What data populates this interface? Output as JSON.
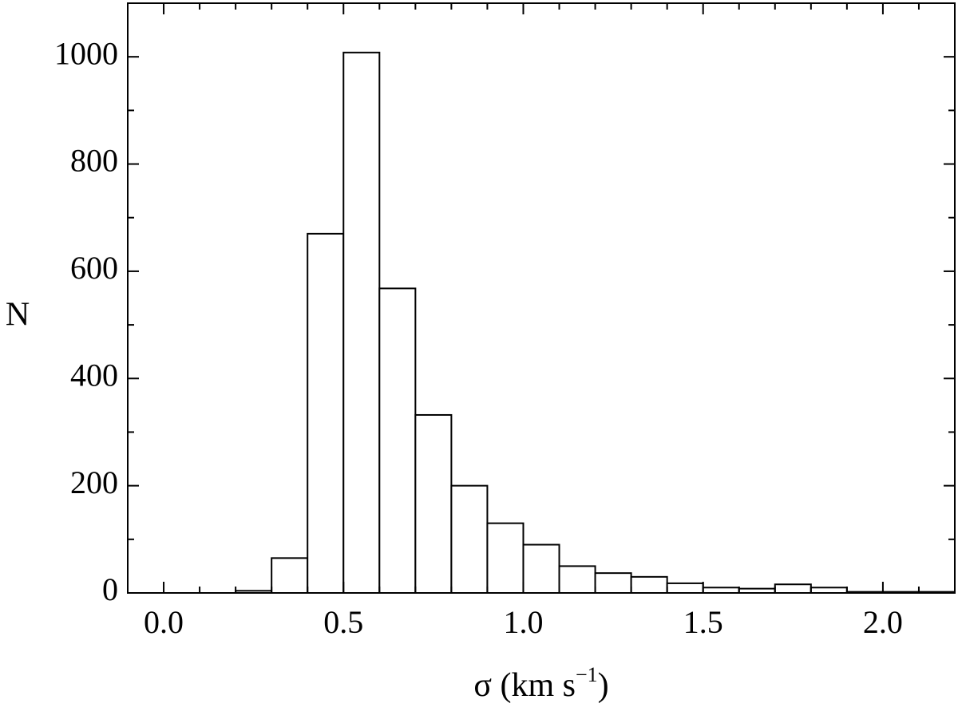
{
  "chart_data": {
    "type": "bar",
    "title": "",
    "xlabel": {
      "main": "σ (km s",
      "sup": "−1",
      "close": ")"
    },
    "ylabel": "N",
    "xlim": [
      -0.1,
      2.2
    ],
    "ylim": [
      0,
      1100
    ],
    "bin_width": 0.1,
    "xticks": [
      0.0,
      0.5,
      1.0,
      1.5,
      2.0
    ],
    "xtick_labels": [
      "0.0",
      "0.5",
      "1.0",
      "1.5",
      "2.0"
    ],
    "yticks": [
      0,
      200,
      400,
      600,
      800,
      1000
    ],
    "ytick_labels": [
      "0",
      "200",
      "400",
      "600",
      "800",
      "1000"
    ],
    "x_minor_step": 0.1,
    "y_minor_step": 100,
    "grid": false,
    "legend": "none",
    "bins": [
      {
        "start": 0.2,
        "value": 4
      },
      {
        "start": 0.3,
        "value": 65
      },
      {
        "start": 0.4,
        "value": 670
      },
      {
        "start": 0.5,
        "value": 1008
      },
      {
        "start": 0.6,
        "value": 568
      },
      {
        "start": 0.7,
        "value": 332
      },
      {
        "start": 0.8,
        "value": 200
      },
      {
        "start": 0.9,
        "value": 130
      },
      {
        "start": 1.0,
        "value": 90
      },
      {
        "start": 1.1,
        "value": 50
      },
      {
        "start": 1.2,
        "value": 37
      },
      {
        "start": 1.3,
        "value": 30
      },
      {
        "start": 1.4,
        "value": 18
      },
      {
        "start": 1.5,
        "value": 10
      },
      {
        "start": 1.6,
        "value": 8
      },
      {
        "start": 1.7,
        "value": 16
      },
      {
        "start": 1.8,
        "value": 10
      },
      {
        "start": 1.9,
        "value": 2
      },
      {
        "start": 2.0,
        "value": 2
      },
      {
        "start": 2.1,
        "value": 2
      }
    ],
    "colors": {
      "bar_fill": "#ffffff",
      "bar_stroke": "#000000",
      "axis": "#000000"
    }
  }
}
